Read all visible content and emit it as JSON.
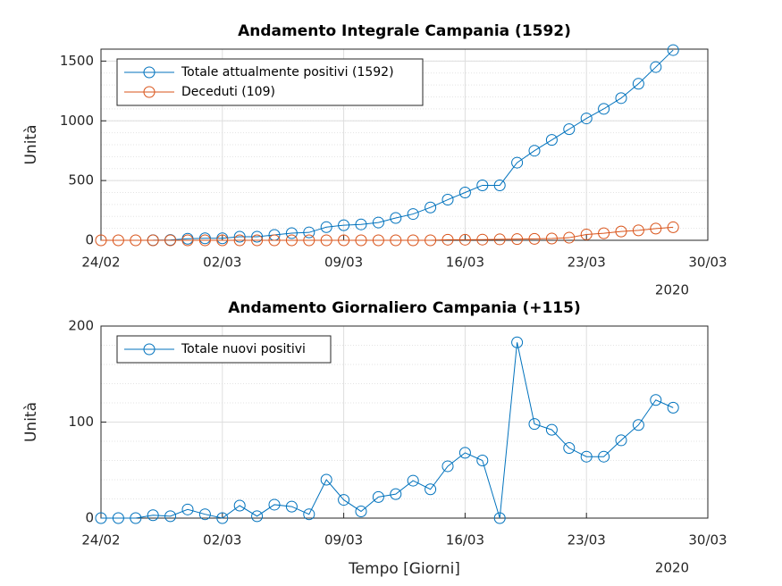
{
  "chart_data": [
    {
      "type": "line",
      "title": "Andamento Integrale Campania (1592)",
      "y_label": "Unità",
      "x_year_label": "2020",
      "x": [
        "2020-02-24",
        "2020-02-25",
        "2020-02-26",
        "2020-02-27",
        "2020-02-28",
        "2020-02-29",
        "2020-03-01",
        "2020-03-02",
        "2020-03-03",
        "2020-03-04",
        "2020-03-05",
        "2020-03-06",
        "2020-03-07",
        "2020-03-08",
        "2020-03-09",
        "2020-03-10",
        "2020-03-11",
        "2020-03-12",
        "2020-03-13",
        "2020-03-14",
        "2020-03-15",
        "2020-03-16",
        "2020-03-17",
        "2020-03-18",
        "2020-03-19",
        "2020-03-20",
        "2020-03-21",
        "2020-03-22",
        "2020-03-23",
        "2020-03-24",
        "2020-03-25",
        "2020-03-26",
        "2020-03-27",
        "2020-03-28"
      ],
      "series": [
        {
          "name": "Totale attualmente positivi (1592)",
          "color": "#0072bd",
          "values": [
            null,
            null,
            null,
            1,
            3,
            13,
            17,
            17,
            30,
            30,
            45,
            60,
            66,
            110,
            126,
            133,
            149,
            187,
            220,
            275,
            340,
            400,
            460,
            460,
            650,
            750,
            840,
            930,
            1020,
            1100,
            1190,
            1310,
            1450,
            1592
          ]
        },
        {
          "name": "Deceduti (109)",
          "color": "#d95319",
          "values": [
            0,
            0,
            0,
            0,
            0,
            0,
            0,
            0,
            0,
            0,
            0,
            0,
            0,
            0,
            0,
            0,
            0,
            0,
            0,
            0,
            5,
            5,
            6,
            8,
            10,
            12,
            15,
            22,
            49,
            59,
            74,
            83,
            98,
            109
          ]
        }
      ],
      "xlim": [
        "2020-02-24",
        "2020-03-30"
      ],
      "xticks": [
        {
          "value": "2020-02-24",
          "label": "24/02"
        },
        {
          "value": "2020-03-02",
          "label": "02/03"
        },
        {
          "value": "2020-03-09",
          "label": "09/03"
        },
        {
          "value": "2020-03-16",
          "label": "16/03"
        },
        {
          "value": "2020-03-23",
          "label": "23/03"
        },
        {
          "value": "2020-03-30",
          "label": "30/03"
        }
      ],
      "ylim": [
        0,
        1600
      ],
      "yticks": [
        0,
        500,
        1000,
        1500
      ],
      "grid": true,
      "minor_grid": true,
      "legend": "upper left"
    },
    {
      "type": "line",
      "title": "Andamento Giornaliero Campania (+115)",
      "y_label": "Unità",
      "x_label": "Tempo [Giorni]",
      "x_year_label": "2020",
      "x": [
        "2020-02-24",
        "2020-02-25",
        "2020-02-26",
        "2020-02-27",
        "2020-02-28",
        "2020-02-29",
        "2020-03-01",
        "2020-03-02",
        "2020-03-03",
        "2020-03-04",
        "2020-03-05",
        "2020-03-06",
        "2020-03-07",
        "2020-03-08",
        "2020-03-09",
        "2020-03-10",
        "2020-03-11",
        "2020-03-12",
        "2020-03-13",
        "2020-03-14",
        "2020-03-15",
        "2020-03-16",
        "2020-03-17",
        "2020-03-18",
        "2020-03-19",
        "2020-03-20",
        "2020-03-21",
        "2020-03-22",
        "2020-03-23",
        "2020-03-24",
        "2020-03-25",
        "2020-03-26",
        "2020-03-27",
        "2020-03-28"
      ],
      "series": [
        {
          "name": "Totale nuovi positivi",
          "color": "#0072bd",
          "values": [
            0,
            0,
            0,
            3,
            2,
            9,
            4,
            0,
            13,
            2,
            14,
            12,
            4,
            40,
            19,
            7,
            22,
            25,
            39,
            30,
            54,
            68,
            60,
            0,
            183,
            98,
            92,
            73,
            64,
            64,
            81,
            97,
            123,
            115
          ]
        }
      ],
      "xlim": [
        "2020-02-24",
        "2020-03-30"
      ],
      "xticks": [
        {
          "value": "2020-02-24",
          "label": "24/02"
        },
        {
          "value": "2020-03-02",
          "label": "02/03"
        },
        {
          "value": "2020-03-09",
          "label": "09/03"
        },
        {
          "value": "2020-03-16",
          "label": "16/03"
        },
        {
          "value": "2020-03-23",
          "label": "23/03"
        },
        {
          "value": "2020-03-30",
          "label": "30/03"
        }
      ],
      "ylim": [
        0,
        200
      ],
      "yticks": [
        0,
        100,
        200
      ],
      "grid": true,
      "minor_grid": true,
      "legend": "upper left"
    }
  ]
}
